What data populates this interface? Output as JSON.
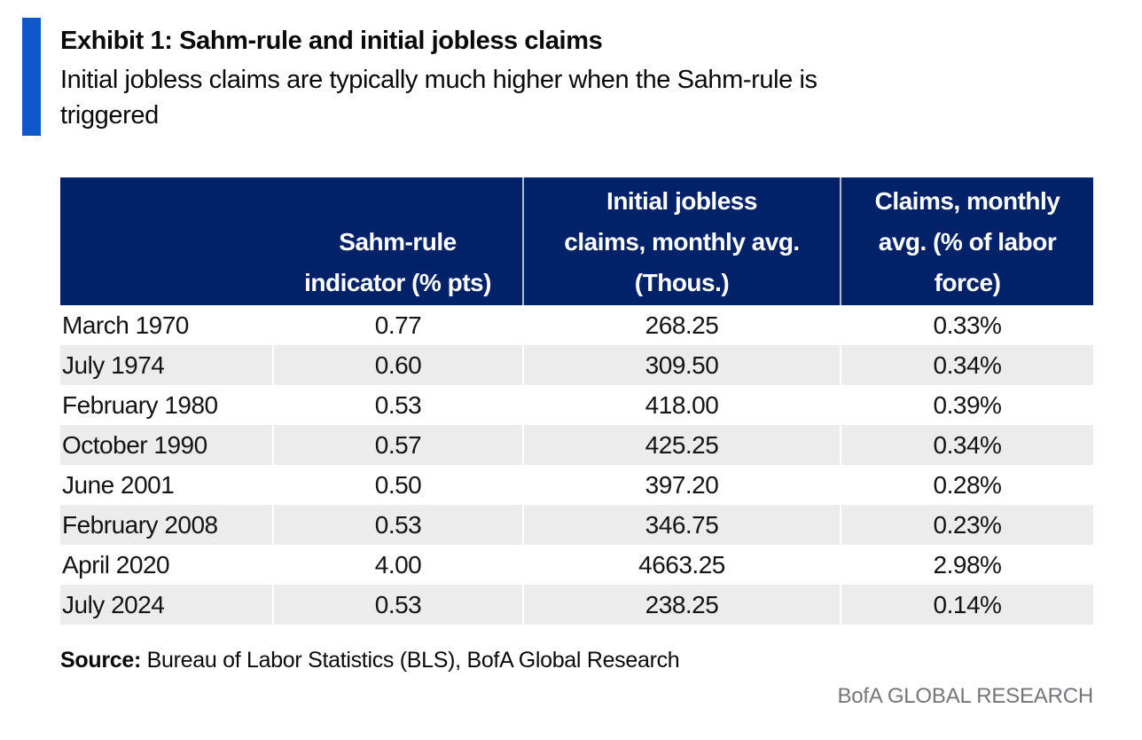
{
  "chart_data": {
    "type": "table",
    "title": "Exhibit 1: Sahm-rule and initial jobless claims",
    "subtitle": [
      "Initial jobless claims are typically much higher when the Sahm-rule is",
      "triggered"
    ],
    "columns": [
      "",
      "Sahm-rule indicator (% pts)",
      "Initial jobless claims, monthly avg. (Thous.)",
      "Claims, monthly avg. (% of labor force)"
    ],
    "header_lines": [
      [],
      [
        "Sahm-rule",
        "indicator (% pts)"
      ],
      [
        "Initial jobless",
        "claims, monthly avg.",
        "(Thous.)"
      ],
      [
        "Claims, monthly",
        "avg. (% of labor",
        "force)"
      ]
    ],
    "rows": [
      [
        "March 1970",
        "0.77",
        "268.25",
        "0.33%"
      ],
      [
        "July 1974",
        "0.60",
        "309.50",
        "0.34%"
      ],
      [
        "February 1980",
        "0.53",
        "418.00",
        "0.39%"
      ],
      [
        "October 1990",
        "0.57",
        "425.25",
        "0.34%"
      ],
      [
        "June 2001",
        "0.50",
        "397.20",
        "0.28%"
      ],
      [
        "February 2008",
        "0.53",
        "346.75",
        "0.23%"
      ],
      [
        "April 2020",
        "4.00",
        "4663.25",
        "2.98%"
      ],
      [
        "July 2024",
        "0.53",
        "238.25",
        "0.14%"
      ]
    ]
  },
  "source": {
    "label": "Source:",
    "text": " Bureau of Labor Statistics (BLS), BofA Global Research"
  },
  "footer": {
    "brand": "BofA GLOBAL RESEARCH"
  },
  "colors": {
    "header_navy": "#012169",
    "accent_blue": "#0e58c9",
    "stripe_gray": "#ececec",
    "footer_gray": "#75767a"
  }
}
